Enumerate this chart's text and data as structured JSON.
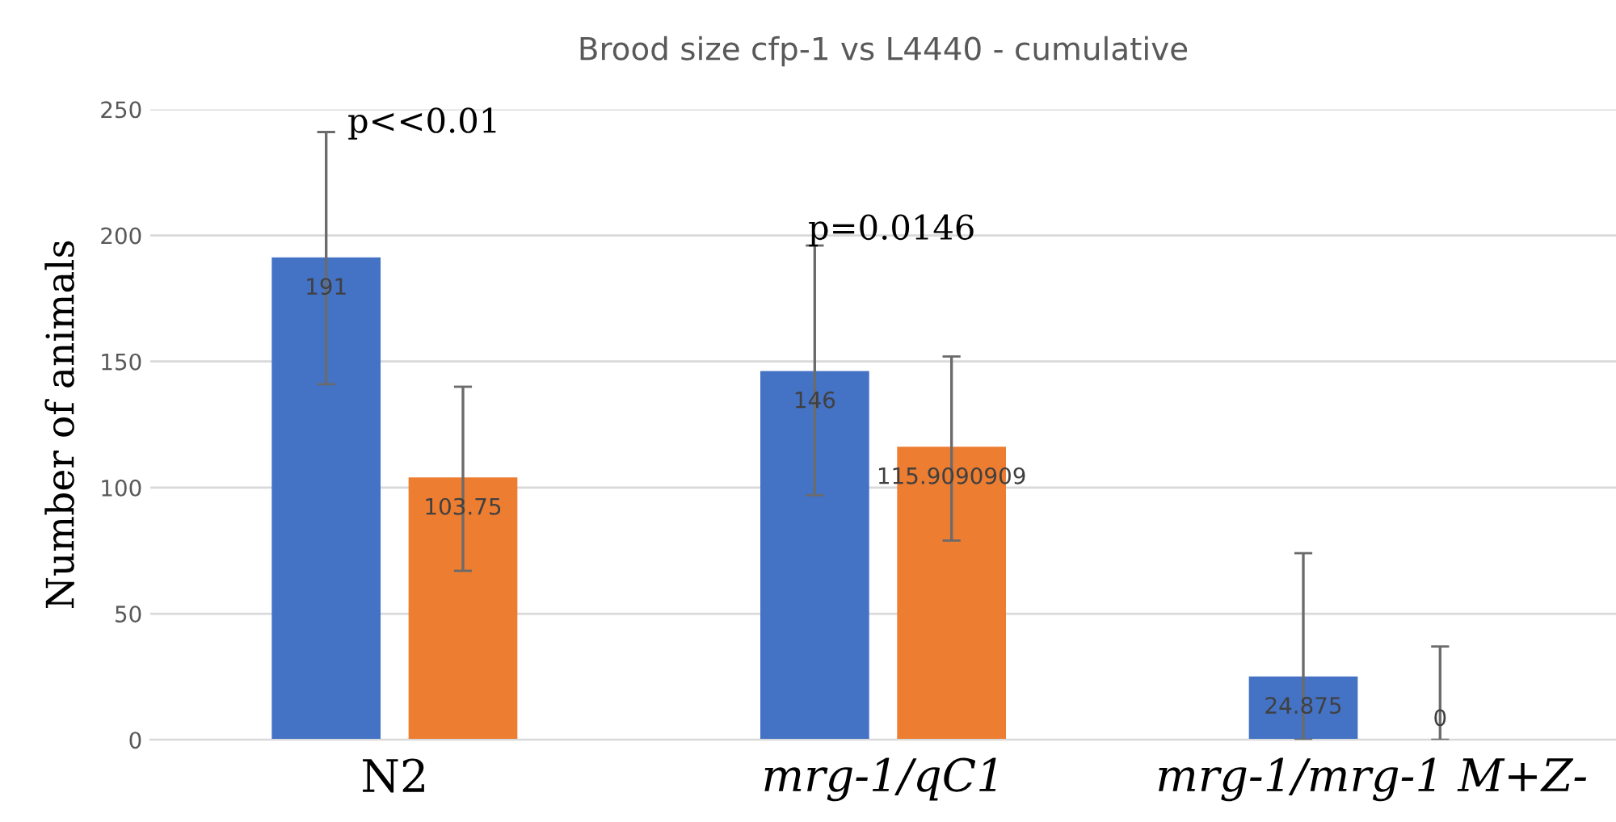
{
  "chart_data": {
    "type": "bar",
    "title": "Brood size cfp-1 vs L4440 - cumulative",
    "ylabel": "Number of animals",
    "categories": [
      "N2",
      "mrg-1/qC1",
      "mrg-1/mrg-1 M+Z-"
    ],
    "series": [
      {
        "color": "#4472c4",
        "values": [
          191,
          146,
          24.875
        ],
        "errors": [
          [
            141,
            241
          ],
          [
            97,
            196
          ],
          [
            0,
            74
          ]
        ]
      },
      {
        "color": "#ed7d31",
        "values": [
          103.75,
          115.9090909,
          0
        ],
        "errors": [
          [
            67,
            140
          ],
          [
            79,
            152
          ],
          [
            0,
            37
          ]
        ]
      }
    ],
    "ylim": [
      0,
      250
    ],
    "yticks": [
      0,
      50,
      100,
      150,
      200,
      250
    ],
    "grid": "y",
    "data_labels": true,
    "annotations": [
      "p<<0.01",
      "p=0.0146"
    ]
  }
}
